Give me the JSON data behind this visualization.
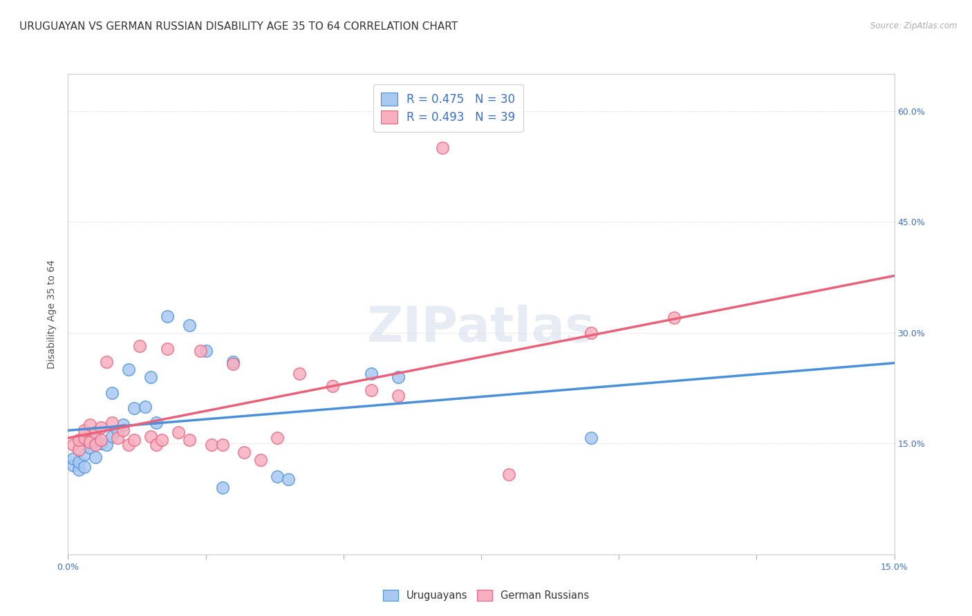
{
  "title": "URUGUAYAN VS GERMAN RUSSIAN DISABILITY AGE 35 TO 64 CORRELATION CHART",
  "source": "Source: ZipAtlas.com",
  "ylabel": "Disability Age 35 to 64",
  "xlim": [
    0.0,
    0.15
  ],
  "ylim": [
    0.0,
    0.65
  ],
  "color_blue": "#a8c8f0",
  "color_pink": "#f8b0c0",
  "line_blue": "#4a90d9",
  "line_pink": "#e8607a",
  "legend_text_color": "#3a6fc4",
  "R_uruguayan": 0.475,
  "N_uruguayan": 30,
  "R_german": 0.493,
  "N_german": 39,
  "uruguayan_x": [
    0.001,
    0.001,
    0.002,
    0.002,
    0.003,
    0.003,
    0.004,
    0.005,
    0.005,
    0.006,
    0.007,
    0.008,
    0.008,
    0.009,
    0.01,
    0.011,
    0.012,
    0.014,
    0.015,
    0.016,
    0.018,
    0.022,
    0.025,
    0.028,
    0.03,
    0.038,
    0.04,
    0.055,
    0.06,
    0.095
  ],
  "uruguayan_y": [
    0.12,
    0.13,
    0.115,
    0.125,
    0.118,
    0.135,
    0.145,
    0.132,
    0.155,
    0.15,
    0.148,
    0.16,
    0.218,
    0.168,
    0.175,
    0.25,
    0.198,
    0.2,
    0.24,
    0.178,
    0.322,
    0.31,
    0.275,
    0.09,
    0.26,
    0.105,
    0.102,
    0.245,
    0.24,
    0.158
  ],
  "german_x": [
    0.001,
    0.002,
    0.002,
    0.003,
    0.003,
    0.004,
    0.004,
    0.005,
    0.005,
    0.006,
    0.006,
    0.007,
    0.008,
    0.009,
    0.01,
    0.011,
    0.012,
    0.013,
    0.015,
    0.016,
    0.017,
    0.018,
    0.02,
    0.022,
    0.024,
    0.026,
    0.028,
    0.03,
    0.032,
    0.035,
    0.038,
    0.042,
    0.048,
    0.055,
    0.06,
    0.068,
    0.08,
    0.095,
    0.11
  ],
  "german_y": [
    0.148,
    0.142,
    0.155,
    0.158,
    0.168,
    0.152,
    0.175,
    0.148,
    0.165,
    0.155,
    0.172,
    0.26,
    0.178,
    0.158,
    0.168,
    0.148,
    0.155,
    0.282,
    0.16,
    0.148,
    0.155,
    0.278,
    0.165,
    0.155,
    0.275,
    0.148,
    0.148,
    0.258,
    0.138,
    0.128,
    0.158,
    0.245,
    0.228,
    0.222,
    0.215,
    0.55,
    0.108,
    0.3,
    0.32
  ],
  "background_color": "#ffffff",
  "grid_color": "#e0e0e0",
  "title_fontsize": 11,
  "axis_label_fontsize": 10,
  "tick_fontsize": 9,
  "watermark": "ZIPatlas"
}
